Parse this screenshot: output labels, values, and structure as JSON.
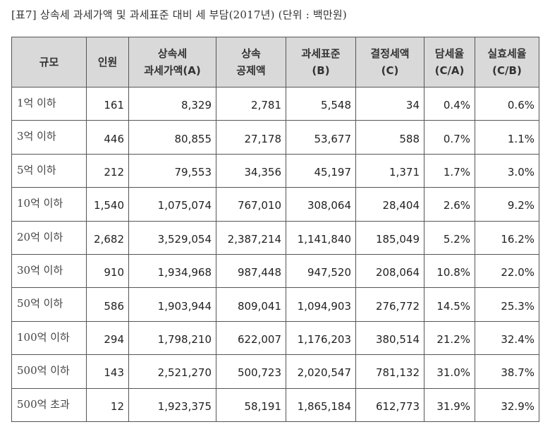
{
  "title": "[표7] 상속세 과세가액 및 과세표준 대비 세 부담(2017년) (단위 : 백만원)",
  "table": {
    "headers": [
      {
        "line1": "규모",
        "line2": ""
      },
      {
        "line1": "인원",
        "line2": ""
      },
      {
        "line1": "상속세",
        "line2": "과세가액(A)"
      },
      {
        "line1": "상속",
        "line2": "공제액"
      },
      {
        "line1": "과세표준",
        "line2": "(B)"
      },
      {
        "line1": "결정세액",
        "line2": "(C)"
      },
      {
        "line1": "담세율",
        "line2": "(C/A)"
      },
      {
        "line1": "실효세율",
        "line2": "(C/B)"
      }
    ],
    "rows": [
      [
        "1억 이하",
        "161",
        "8,329",
        "2,781",
        "5,548",
        "34",
        "0.4%",
        "0.6%"
      ],
      [
        "3억 이하",
        "446",
        "80,855",
        "27,178",
        "53,677",
        "588",
        "0.7%",
        "1.1%"
      ],
      [
        "5억 이하",
        "212",
        "79,553",
        "34,356",
        "45,197",
        "1,371",
        "1.7%",
        "3.0%"
      ],
      [
        "10억 이하",
        "1,540",
        "1,075,074",
        "767,010",
        "308,064",
        "28,404",
        "2.6%",
        "9.2%"
      ],
      [
        "20억 이하",
        "2,682",
        "3,529,054",
        "2,387,214",
        "1,141,840",
        "185,049",
        "5.2%",
        "16.2%"
      ],
      [
        "30억 이하",
        "910",
        "1,934,968",
        "987,448",
        "947,520",
        "208,064",
        "10.8%",
        "22.0%"
      ],
      [
        "50억 이하",
        "586",
        "1,903,944",
        "809,041",
        "1,094,903",
        "276,772",
        "14.5%",
        "25.3%"
      ],
      [
        "100억 이하",
        "294",
        "1,798,210",
        "622,007",
        "1,176,203",
        "380,514",
        "21.2%",
        "32.4%"
      ],
      [
        "500억 이하",
        "143",
        "2,521,270",
        "500,723",
        "2,020,547",
        "781,132",
        "31.0%",
        "38.7%"
      ],
      [
        "500억 초과",
        "12",
        "1,923,375",
        "58,191",
        "1,865,184",
        "612,773",
        "31.9%",
        "32.9%"
      ]
    ]
  },
  "colors": {
    "header_bg": "#d9d9d9",
    "border": "#555555",
    "text": "#222222"
  }
}
